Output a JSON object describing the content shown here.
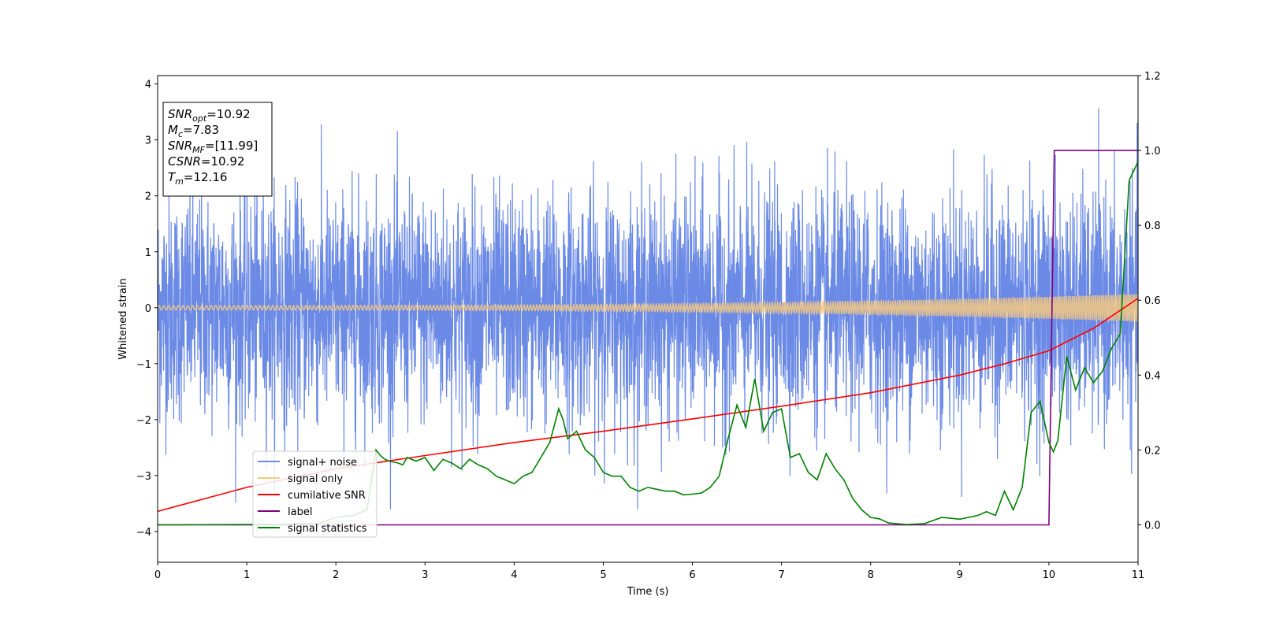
{
  "chart_data": {
    "type": "line",
    "xlabel": "Time (s)",
    "ylabel": "Whitened strain",
    "xlim": [
      0,
      11
    ],
    "ylim_left": [
      -4.55,
      4.15
    ],
    "ylim_right": [
      -0.1,
      1.2
    ],
    "x_ticks": [
      0,
      1,
      2,
      3,
      4,
      5,
      6,
      7,
      8,
      9,
      10,
      11
    ],
    "y_ticks_left": [
      -4,
      -3,
      -2,
      -1,
      0,
      1,
      2,
      3,
      4
    ],
    "y_ticks_right": [
      "0.0",
      "0.2",
      "0.4",
      "0.6",
      "0.8",
      "1.0",
      "1.2"
    ],
    "grid": false,
    "legend_position": "lower-left",
    "annotation": {
      "lines": [
        {
          "base": "SNR",
          "sub": "opt",
          "rest": "=10.92"
        },
        {
          "base": "M",
          "sub": "c",
          "rest": "=7.83"
        },
        {
          "base": "SNR",
          "sub": "MF",
          "rest": "=[11.99]"
        },
        {
          "base": "CSNR",
          "sub": "",
          "rest": "=10.92"
        },
        {
          "base": "T",
          "sub": "m",
          "rest": "=12.16"
        }
      ]
    },
    "series": [
      {
        "name": "signal+ noise",
        "color": "#6b8ae6",
        "axis": "left",
        "kind": "noise",
        "amplitude_std": 1.0
      },
      {
        "name": "signal only",
        "color": "#f5c880",
        "axis": "left",
        "kind": "chirp",
        "amplitude_start": 0.04,
        "amplitude_end": 0.25
      },
      {
        "name": "cumilative SNR",
        "color": "#ff0000",
        "axis": "right",
        "x": [
          0,
          1,
          2,
          3,
          4,
          5,
          6,
          7,
          8,
          9,
          9.5,
          10,
          10.5,
          11
        ],
        "y": [
          0.036,
          0.1,
          0.15,
          0.185,
          0.22,
          0.25,
          0.283,
          0.317,
          0.353,
          0.4,
          0.43,
          0.465,
          0.525,
          0.605
        ]
      },
      {
        "name": "label",
        "color": "#800080",
        "axis": "right",
        "x": [
          0,
          10.0,
          10.06,
          11
        ],
        "y": [
          0,
          0,
          1,
          1
        ]
      },
      {
        "name": "signal statistics",
        "color": "#008000",
        "axis": "right",
        "x": [
          0,
          1.0,
          1.8,
          2.0,
          2.2,
          2.35,
          2.45,
          2.5,
          2.55,
          2.6,
          2.7,
          2.75,
          2.8,
          2.9,
          3.0,
          3.1,
          3.2,
          3.3,
          3.4,
          3.5,
          3.6,
          3.7,
          3.8,
          3.9,
          4.0,
          4.1,
          4.2,
          4.3,
          4.4,
          4.5,
          4.55,
          4.6,
          4.7,
          4.8,
          4.9,
          5.0,
          5.1,
          5.2,
          5.3,
          5.4,
          5.5,
          5.6,
          5.7,
          5.8,
          5.9,
          6.0,
          6.1,
          6.2,
          6.3,
          6.4,
          6.5,
          6.6,
          6.7,
          6.8,
          6.9,
          7.0,
          7.1,
          7.2,
          7.3,
          7.4,
          7.5,
          7.6,
          7.7,
          7.8,
          7.9,
          8.0,
          8.1,
          8.2,
          8.4,
          8.6,
          8.8,
          9.0,
          9.2,
          9.3,
          9.4,
          9.5,
          9.6,
          9.7,
          9.8,
          9.9,
          10.0,
          10.05,
          10.1,
          10.2,
          10.3,
          10.4,
          10.5,
          10.6,
          10.7,
          10.8,
          10.9,
          11.0
        ],
        "y": [
          0,
          0.001,
          0.003,
          0.02,
          0.025,
          0.04,
          0.2,
          0.185,
          0.175,
          0.17,
          0.165,
          0.16,
          0.18,
          0.17,
          0.18,
          0.145,
          0.175,
          0.165,
          0.15,
          0.175,
          0.16,
          0.15,
          0.13,
          0.12,
          0.11,
          0.13,
          0.14,
          0.18,
          0.22,
          0.31,
          0.28,
          0.23,
          0.25,
          0.2,
          0.18,
          0.14,
          0.13,
          0.13,
          0.1,
          0.09,
          0.1,
          0.095,
          0.09,
          0.09,
          0.08,
          0.082,
          0.085,
          0.1,
          0.13,
          0.23,
          0.32,
          0.26,
          0.39,
          0.25,
          0.3,
          0.31,
          0.18,
          0.19,
          0.14,
          0.12,
          0.19,
          0.15,
          0.12,
          0.07,
          0.04,
          0.02,
          0.016,
          0.005,
          0.001,
          0.003,
          0.02,
          0.015,
          0.025,
          0.035,
          0.025,
          0.09,
          0.04,
          0.1,
          0.3,
          0.33,
          0.22,
          0.195,
          0.225,
          0.45,
          0.36,
          0.42,
          0.38,
          0.41,
          0.47,
          0.51,
          0.92,
          0.97
        ]
      }
    ]
  }
}
